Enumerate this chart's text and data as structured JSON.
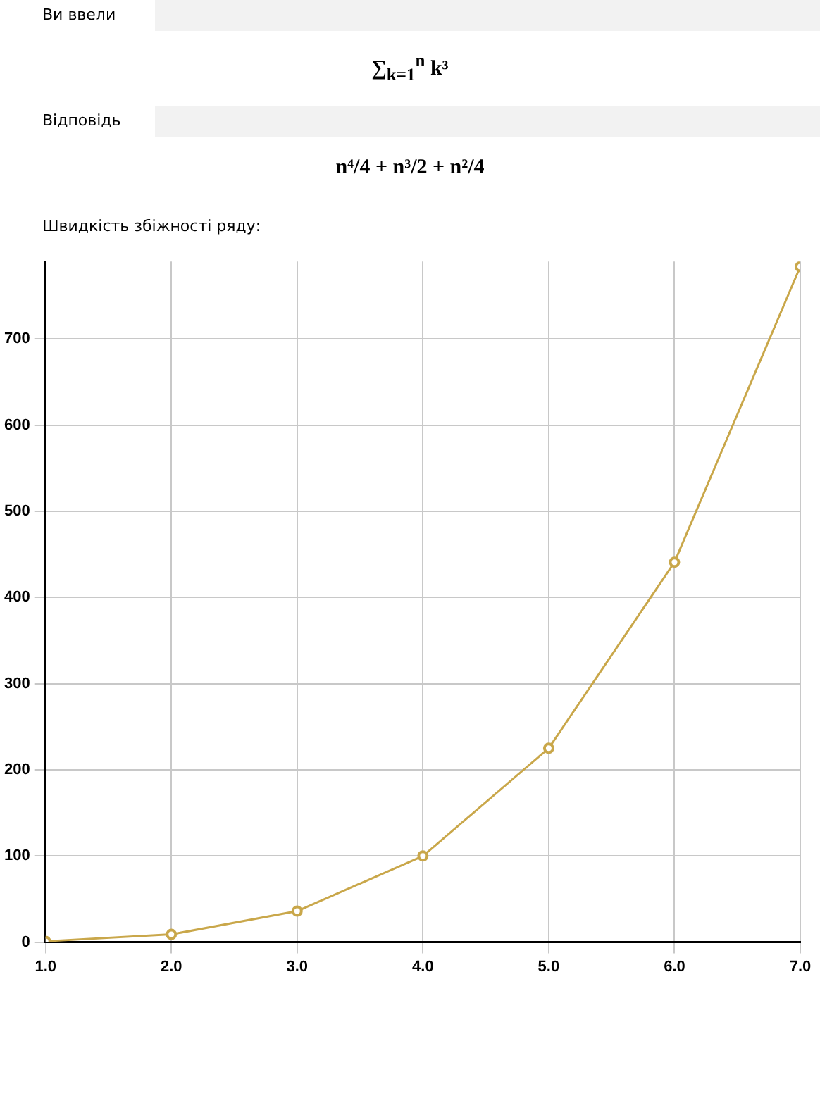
{
  "chart_data": {
    "type": "line",
    "title": "Швидкість збіжності ряду:",
    "annotations": [
      "Ви ввели",
      "∑$_{k=1}$$^{n}$ k³",
      "Відповідь",
      "n⁴/4 + n³/2 + n²/4"
    ],
    "x": [
      1,
      2,
      3,
      4,
      5,
      6,
      7
    ],
    "series": [
      {
        "color": "#c9a74a",
        "values": [
          1,
          9,
          36,
          100,
          225,
          441,
          784
        ]
      }
    ],
    "xlim": [
      1,
      7
    ],
    "ylim": [
      0,
      790
    ],
    "xticks": [
      {
        "value": 1,
        "label": "1.0"
      },
      {
        "value": 2,
        "label": "2.0"
      },
      {
        "value": 3,
        "label": "3.0"
      },
      {
        "value": 4,
        "label": "4.0"
      },
      {
        "value": 5,
        "label": "5.0"
      },
      {
        "value": 6,
        "label": "6.0"
      },
      {
        "value": 7,
        "label": "7.0"
      }
    ],
    "yticks": [
      0,
      100,
      200,
      300,
      400,
      500,
      600,
      700
    ],
    "grid": true,
    "legend": false,
    "marker": "circle",
    "line_style": "solid"
  }
}
